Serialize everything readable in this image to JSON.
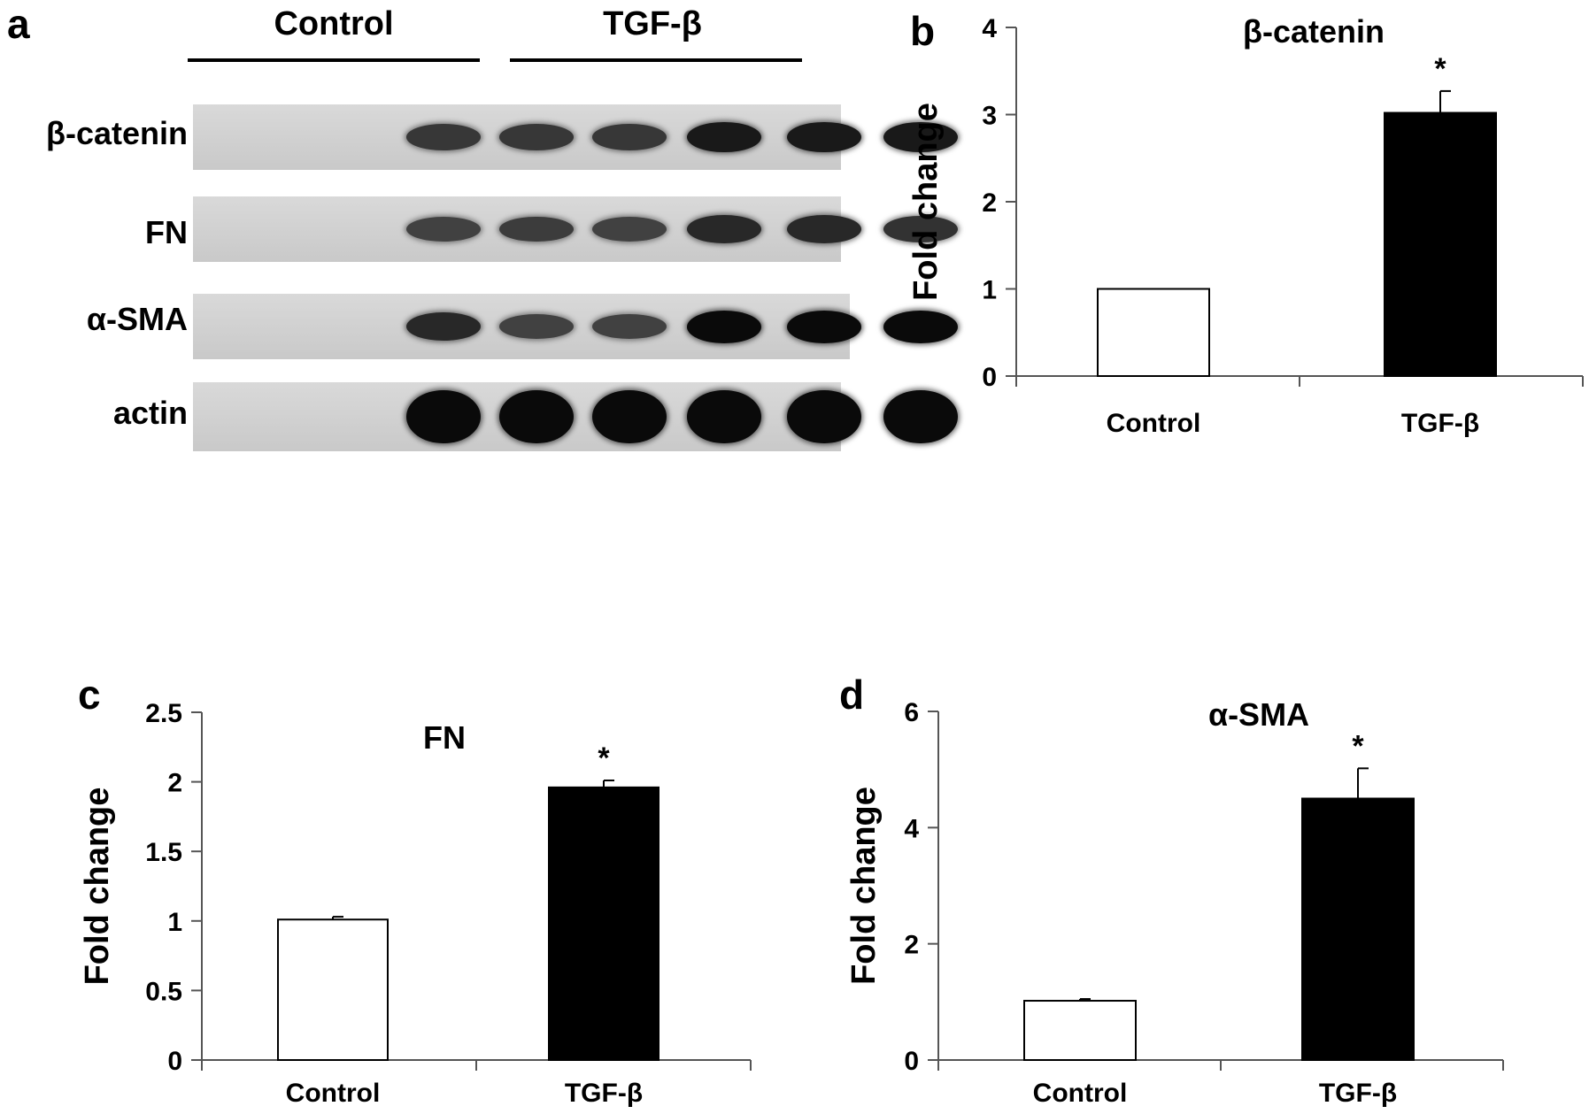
{
  "panels": {
    "a": "a",
    "b": "b",
    "c": "c",
    "d": "d"
  },
  "blot": {
    "groups": [
      "Control",
      "TGF-β"
    ],
    "rows": [
      {
        "label": "β-catenin",
        "intensity": [
          0.55,
          0.55,
          0.55,
          0.85,
          0.85,
          0.85
        ]
      },
      {
        "label": "FN",
        "intensity": [
          0.45,
          0.5,
          0.45,
          0.7,
          0.7,
          0.6
        ]
      },
      {
        "label": "α-SMA",
        "intensity": [
          0.7,
          0.45,
          0.45,
          1.0,
          1.0,
          1.0
        ]
      },
      {
        "label": "actin",
        "intensity": [
          1.0,
          1.0,
          1.0,
          1.0,
          1.0,
          1.0
        ]
      }
    ]
  },
  "chart_data": [
    {
      "panel": "b",
      "type": "bar",
      "title": "β-catenin",
      "ylabel": "Fold change",
      "xlabel": "",
      "categories": [
        "Control",
        "TGF-β"
      ],
      "values": [
        1.0,
        3.02
      ],
      "errors": [
        0,
        0.25
      ],
      "annotations": [
        "",
        "*"
      ],
      "ylim": [
        0,
        4
      ],
      "yticks": [
        "0",
        "1",
        "2",
        "3",
        "4"
      ],
      "bar_colors": [
        "#ffffff",
        "#000000"
      ]
    },
    {
      "panel": "c",
      "type": "bar",
      "title": "FN",
      "ylabel": "Fold change",
      "xlabel": "",
      "categories": [
        "Control",
        "TGF-β"
      ],
      "values": [
        1.01,
        1.96
      ],
      "errors": [
        0.02,
        0.05
      ],
      "annotations": [
        "",
        "*"
      ],
      "ylim": [
        0,
        2.5
      ],
      "yticks": [
        "0",
        "0.5",
        "1",
        "1.5",
        "2",
        "2.5"
      ],
      "bar_colors": [
        "#ffffff",
        "#000000"
      ]
    },
    {
      "panel": "d",
      "type": "bar",
      "title": "α-SMA",
      "ylabel": "Fold change",
      "xlabel": "",
      "categories": [
        "Control",
        "TGF-β"
      ],
      "values": [
        1.02,
        4.5
      ],
      "errors": [
        0.03,
        0.52
      ],
      "annotations": [
        "",
        "*"
      ],
      "ylim": [
        0,
        6
      ],
      "yticks": [
        "0",
        "2",
        "4",
        "6"
      ],
      "bar_colors": [
        "#ffffff",
        "#000000"
      ]
    }
  ]
}
